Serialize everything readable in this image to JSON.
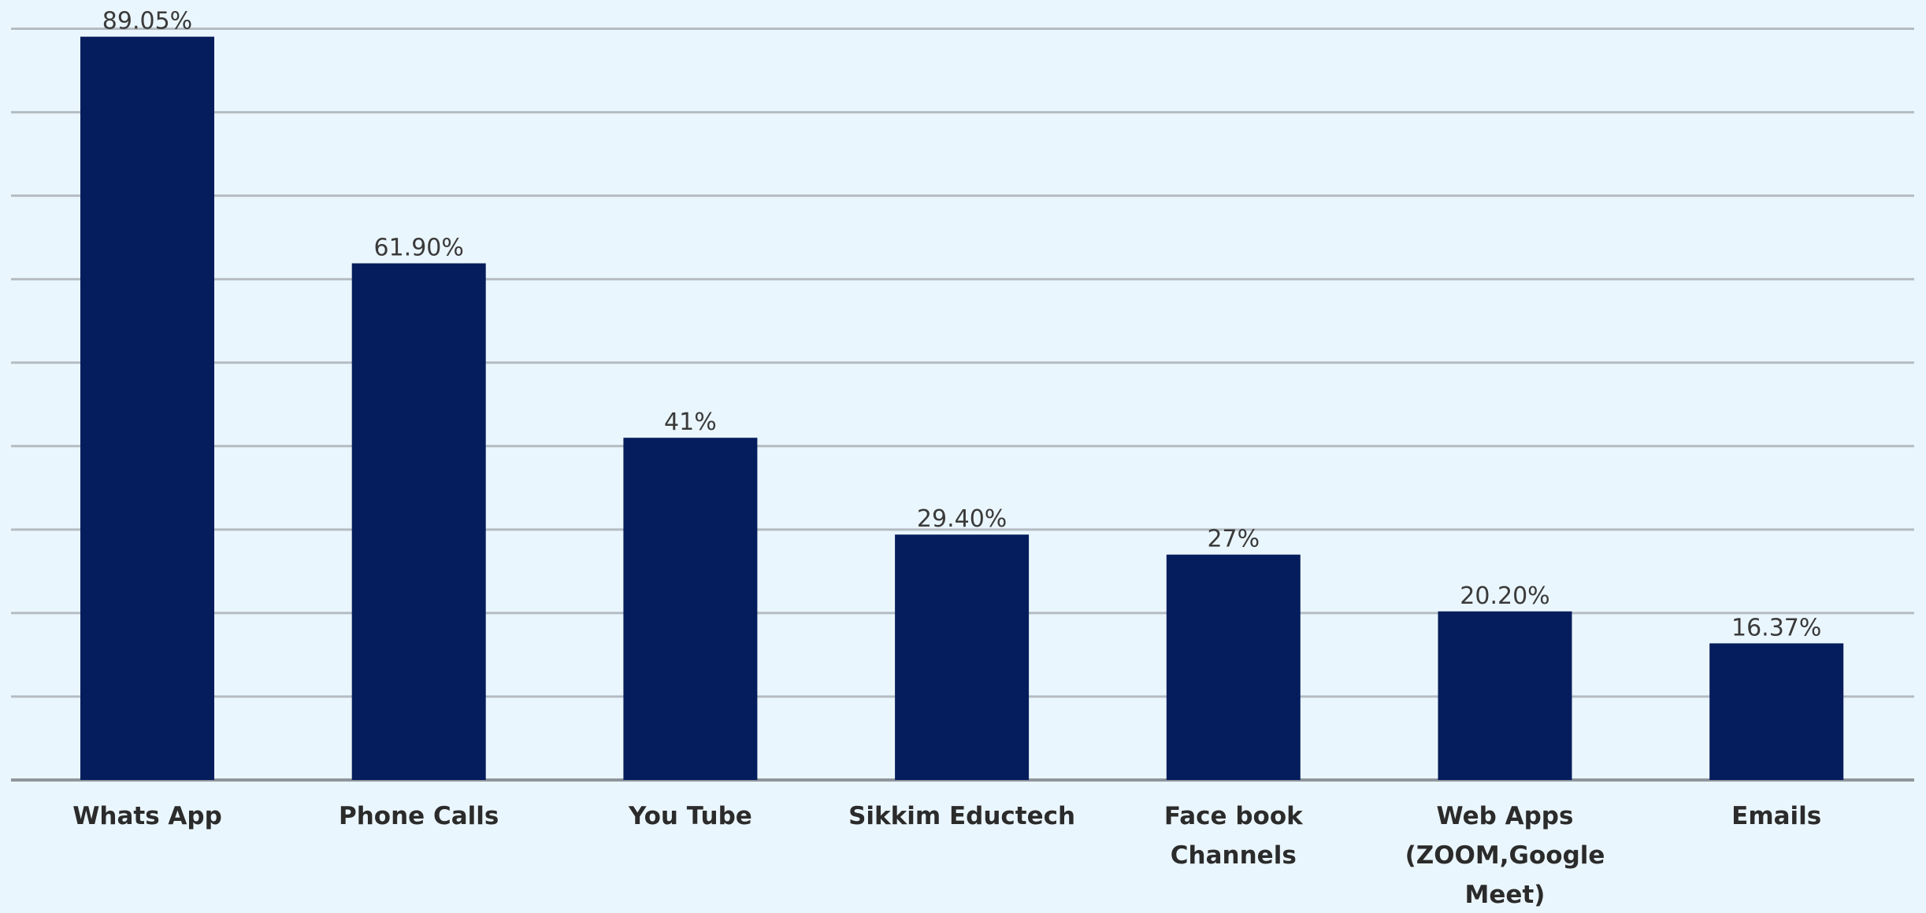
{
  "chart_data": {
    "type": "bar",
    "categories": [
      "Whats App",
      "Phone Calls",
      "You Tube",
      "Sikkim Eductech",
      "Face book Channels",
      "Web Apps (ZOOM,Google Meet)",
      "Emails"
    ],
    "category_lines": [
      [
        "Whats App"
      ],
      [
        "Phone Calls"
      ],
      [
        "You Tube"
      ],
      [
        "Sikkim Eductech"
      ],
      [
        "Face book",
        "Channels"
      ],
      [
        "Web Apps",
        "(ZOOM,Google",
        "Meet)"
      ],
      [
        "Emails"
      ]
    ],
    "values": [
      89.05,
      61.9,
      41,
      29.4,
      27,
      20.2,
      16.37
    ],
    "data_labels": [
      "89.05%",
      "61.90%",
      "41%",
      "29.40%",
      "27%",
      "20.20%",
      "16.37%"
    ],
    "title": "",
    "xlabel": "",
    "ylabel": "",
    "ylim": [
      0,
      90
    ],
    "grid": true,
    "legend": "none",
    "colors": {
      "bar": "#051d5c",
      "background": "#eaf6fd",
      "grid": "#b4bcc2"
    }
  }
}
